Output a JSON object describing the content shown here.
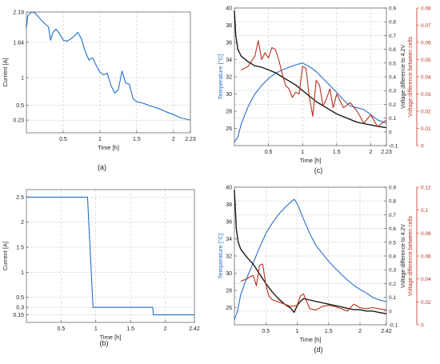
{
  "chart_data": [
    {
      "type": "line",
      "caption": "(a)",
      "xlabel": "Time [h]",
      "ylabel": "Current [A]",
      "xlim": [
        0,
        2.23
      ],
      "ylim": [
        0,
        2.19
      ],
      "xticks": [
        0.5,
        1,
        1.5,
        2,
        2.23
      ],
      "xtick_labels": [
        "0.5",
        "1",
        "1.5",
        "2",
        "2.23"
      ],
      "yticks": [
        0.23,
        0.5,
        1,
        1.64,
        2.19
      ],
      "ytick_labels": [
        "0.23",
        "0.5",
        "1",
        "1.64",
        "2.19"
      ],
      "grid": true,
      "series": [
        {
          "color": "#1f6fc5",
          "x": [
            0,
            0.02,
            0.05,
            0.08,
            0.12,
            0.15,
            0.2,
            0.25,
            0.3,
            0.33,
            0.36,
            0.4,
            0.45,
            0.5,
            0.55,
            0.6,
            0.65,
            0.7,
            0.75,
            0.8,
            0.85,
            0.9,
            0.95,
            1,
            1.05,
            1.1,
            1.15,
            1.2,
            1.25,
            1.3,
            1.35,
            1.4,
            1.45,
            1.5,
            1.55,
            1.6,
            1.7,
            1.8,
            1.9,
            2,
            2.1,
            2.23
          ],
          "y": [
            1.9,
            2.12,
            2.17,
            2.19,
            2.17,
            2.12,
            2.05,
            1.98,
            1.92,
            1.68,
            1.82,
            1.88,
            1.8,
            1.68,
            1.66,
            1.7,
            1.75,
            1.82,
            1.7,
            1.48,
            1.32,
            1.36,
            1.22,
            1.1,
            1.05,
            1.08,
            0.86,
            0.72,
            0.78,
            1.12,
            0.9,
            0.88,
            0.62,
            0.56,
            0.55,
            0.53,
            0.48,
            0.44,
            0.38,
            0.33,
            0.27,
            0.23
          ]
        }
      ]
    },
    {
      "type": "line",
      "caption": "(b)",
      "xlabel": "Time [h]",
      "ylabel": "Current [A]",
      "xlim": [
        0,
        2.42
      ],
      "ylim": [
        0,
        2.65
      ],
      "xticks": [
        0.5,
        1,
        1.5,
        2,
        2.42
      ],
      "xtick_labels": [
        "0.5",
        "1",
        "1.5",
        "2",
        "2.42"
      ],
      "yticks": [
        0.15,
        0.3,
        0.5,
        1,
        1.5,
        2,
        2.5
      ],
      "ytick_labels": [
        "0.15",
        "0.3",
        "0.5",
        "1",
        "1.5",
        "2",
        "2.5"
      ],
      "grid": true,
      "series": [
        {
          "color": "#1f6fc5",
          "x": [
            0,
            0.88,
            0.96,
            1.82,
            1.83,
            2.42
          ],
          "y": [
            2.5,
            2.5,
            0.3,
            0.3,
            0.15,
            0.15
          ]
        }
      ]
    },
    {
      "type": "line",
      "caption": "(c)",
      "xlabel": "Time [h]",
      "ylabel": "Temperature [°C]",
      "ylabel2": "Voltage difference to 4.2V",
      "ylabel3": "Voltage difference between cells",
      "xlim": [
        0,
        2.23
      ],
      "ylim": [
        24,
        40
      ],
      "ylim2": [
        -0.1,
        0.9
      ],
      "ylim3": [
        0,
        0.08
      ],
      "xticks": [
        0.5,
        1,
        1.5,
        2,
        2.23
      ],
      "xtick_labels": [
        "0.5",
        "1",
        "1.5",
        "2",
        "2.23"
      ],
      "yticks": [
        26,
        28,
        30,
        32,
        34,
        36,
        38,
        40
      ],
      "ytick_labels": [
        "26",
        "28",
        "30",
        "32",
        "34",
        "36",
        "38",
        "40"
      ],
      "yticks2": [
        -0.1,
        0,
        0.1,
        0.2,
        0.3,
        0.4,
        0.5,
        0.6,
        0.7,
        0.8,
        0.9
      ],
      "ytick_labels2": [
        "-0.1",
        "0",
        "0.1",
        "0.2",
        "0.3",
        "0.4",
        "0.5",
        "0.6",
        "0.7",
        "0.8",
        "0.9"
      ],
      "yticks3": [
        0,
        0.01,
        0.02,
        0.03,
        0.04,
        0.05,
        0.06,
        0.07,
        0.08
      ],
      "ytick_labels3": [
        "0",
        "0.01",
        "0.02",
        "0.03",
        "0.04",
        "0.05",
        "0.06",
        "0.07",
        "0.08"
      ],
      "grid": true,
      "series": [
        {
          "axis": "left",
          "color": "#2a6fc9",
          "x": [
            0,
            0.05,
            0.1,
            0.2,
            0.3,
            0.4,
            0.5,
            0.6,
            0.7,
            0.8,
            0.9,
            1.0,
            1.1,
            1.2,
            1.3,
            1.4,
            1.5,
            1.6,
            1.7,
            1.8,
            1.9,
            2.0,
            2.1,
            2.23
          ],
          "y": [
            24.4,
            25,
            26.5,
            28.5,
            30,
            31,
            31.8,
            32.4,
            32.8,
            33.1,
            33.4,
            33.6,
            33.2,
            32.6,
            31.8,
            31,
            30.2,
            29.3,
            28.6,
            28.4,
            28.2,
            27.6,
            27,
            26.6
          ]
        },
        {
          "axis": "right",
          "color": "#1a1a1a",
          "x": [
            0,
            0.02,
            0.05,
            0.1,
            0.2,
            0.3,
            0.4,
            0.5,
            0.6,
            0.7,
            0.8,
            0.9,
            1.0,
            1.1,
            1.2,
            1.3,
            1.4,
            1.5,
            1.6,
            1.7,
            1.8,
            1.9,
            2.0,
            2.1,
            2.23
          ],
          "y": [
            0.88,
            0.7,
            0.6,
            0.55,
            0.51,
            0.48,
            0.47,
            0.45,
            0.43,
            0.4,
            0.37,
            0.34,
            0.3,
            0.26,
            0.22,
            0.19,
            0.16,
            0.13,
            0.11,
            0.09,
            0.07,
            0.06,
            0.05,
            0.04,
            0.03
          ]
        },
        {
          "axis": "right2",
          "color": "#b5311f",
          "x": [
            0.1,
            0.2,
            0.3,
            0.35,
            0.4,
            0.45,
            0.5,
            0.55,
            0.6,
            0.65,
            0.7,
            0.75,
            0.8,
            0.85,
            0.9,
            0.95,
            1.0,
            1.05,
            1.1,
            1.15,
            1.2,
            1.25,
            1.3,
            1.35,
            1.4,
            1.45,
            1.5,
            1.6,
            1.7,
            1.8,
            1.9,
            2.0,
            2.1,
            2.23
          ],
          "y": [
            0.044,
            0.046,
            0.052,
            0.061,
            0.05,
            0.054,
            0.051,
            0.057,
            0.056,
            0.05,
            0.042,
            0.035,
            0.033,
            0.028,
            0.031,
            0.03,
            0.046,
            0.045,
            0.028,
            0.017,
            0.038,
            0.035,
            0.023,
            0.027,
            0.033,
            0.022,
            0.03,
            0.022,
            0.025,
            0.02,
            0.013,
            0.018,
            0.011,
            0.015
          ]
        }
      ]
    },
    {
      "type": "line",
      "caption": "(d)",
      "xlabel": "Time [h]",
      "ylabel": "Temperature [°C]",
      "ylabel2": "Voltage difference to 4.2V",
      "ylabel3": "Voltage difference between cells",
      "xlim": [
        0,
        2.42
      ],
      "ylim": [
        24,
        40
      ],
      "ylim2": [
        -0.1,
        0.9
      ],
      "ylim3": [
        0,
        0.12
      ],
      "xticks": [
        0.5,
        1,
        1.5,
        2,
        2.42
      ],
      "xtick_labels": [
        "0.5",
        "1",
        "1.5",
        "2",
        "2.42"
      ],
      "yticks": [
        26,
        28,
        30,
        32,
        34,
        36,
        38,
        40
      ],
      "ytick_labels": [
        "26",
        "28",
        "30",
        "32",
        "34",
        "36",
        "38",
        "40"
      ],
      "yticks2": [
        -0.1,
        0,
        0.1,
        0.2,
        0.3,
        0.4,
        0.5,
        0.6,
        0.7,
        0.8,
        0.9
      ],
      "ytick_labels2": [
        "-0.1",
        "0",
        "0.1",
        "0.2",
        "0.3",
        "0.4",
        "0.5",
        "0.6",
        "0.7",
        "0.8",
        "0.9"
      ],
      "yticks3": [
        0,
        0.02,
        0.04,
        0.06,
        0.08,
        0.1,
        0.12
      ],
      "ytick_labels3": [
        "0",
        "0.02",
        "0.04",
        "0.06",
        "0.08",
        "0.1",
        "0.12"
      ],
      "grid": true,
      "series": [
        {
          "axis": "left",
          "color": "#2a6fc9",
          "x": [
            0,
            0.05,
            0.1,
            0.2,
            0.3,
            0.4,
            0.5,
            0.6,
            0.7,
            0.8,
            0.9,
            0.95,
            1.0,
            1.05,
            1.1,
            1.2,
            1.3,
            1.4,
            1.5,
            1.6,
            1.7,
            1.8,
            1.9,
            2.0,
            2.1,
            2.2,
            2.3,
            2.42
          ],
          "y": [
            24.6,
            25.6,
            27.5,
            29.5,
            31.2,
            33,
            34.6,
            35.8,
            36.8,
            37.6,
            38.3,
            38.6,
            38.1,
            37.2,
            36.3,
            34.6,
            33.2,
            32.3,
            31.4,
            30.6,
            29.9,
            29.2,
            28.6,
            28.1,
            27.7,
            27.2,
            26.9,
            26.7
          ]
        },
        {
          "axis": "right",
          "color": "#1a1a1a",
          "x": [
            0,
            0.03,
            0.06,
            0.1,
            0.2,
            0.3,
            0.4,
            0.5,
            0.6,
            0.7,
            0.8,
            0.9,
            0.95,
            1.0,
            1.05,
            1.1,
            1.2,
            1.3,
            1.4,
            1.5,
            1.6,
            1.7,
            1.8,
            1.9,
            2.0,
            2.1,
            2.2,
            2.3,
            2.42
          ],
          "y": [
            0.88,
            0.6,
            0.5,
            0.45,
            0.39,
            0.34,
            0.27,
            0.2,
            0.14,
            0.09,
            0.05,
            0.02,
            -0.01,
            0.04,
            0.07,
            0.09,
            0.08,
            0.07,
            0.06,
            0.05,
            0.04,
            0.03,
            0.02,
            0.01,
            0.01,
            0.0,
            0.0,
            -0.01,
            -0.02
          ]
        },
        {
          "axis": "right2",
          "color": "#b5311f",
          "x": [
            0.1,
            0.2,
            0.25,
            0.3,
            0.35,
            0.4,
            0.45,
            0.5,
            0.55,
            0.6,
            0.7,
            0.8,
            0.9,
            1.0,
            1.05,
            1.1,
            1.2,
            1.3,
            1.4,
            1.5,
            1.6,
            1.7,
            1.8,
            1.9,
            2.0,
            2.1,
            2.2,
            2.3,
            2.42
          ],
          "y": [
            0.038,
            0.04,
            0.042,
            0.043,
            0.034,
            0.052,
            0.053,
            0.035,
            0.025,
            0.022,
            0.02,
            0.018,
            0.016,
            0.017,
            0.025,
            0.027,
            0.014,
            0.013,
            0.016,
            0.017,
            0.016,
            0.014,
            0.012,
            0.018,
            0.015,
            0.014,
            0.015,
            0.014,
            0.013
          ]
        }
      ]
    }
  ]
}
